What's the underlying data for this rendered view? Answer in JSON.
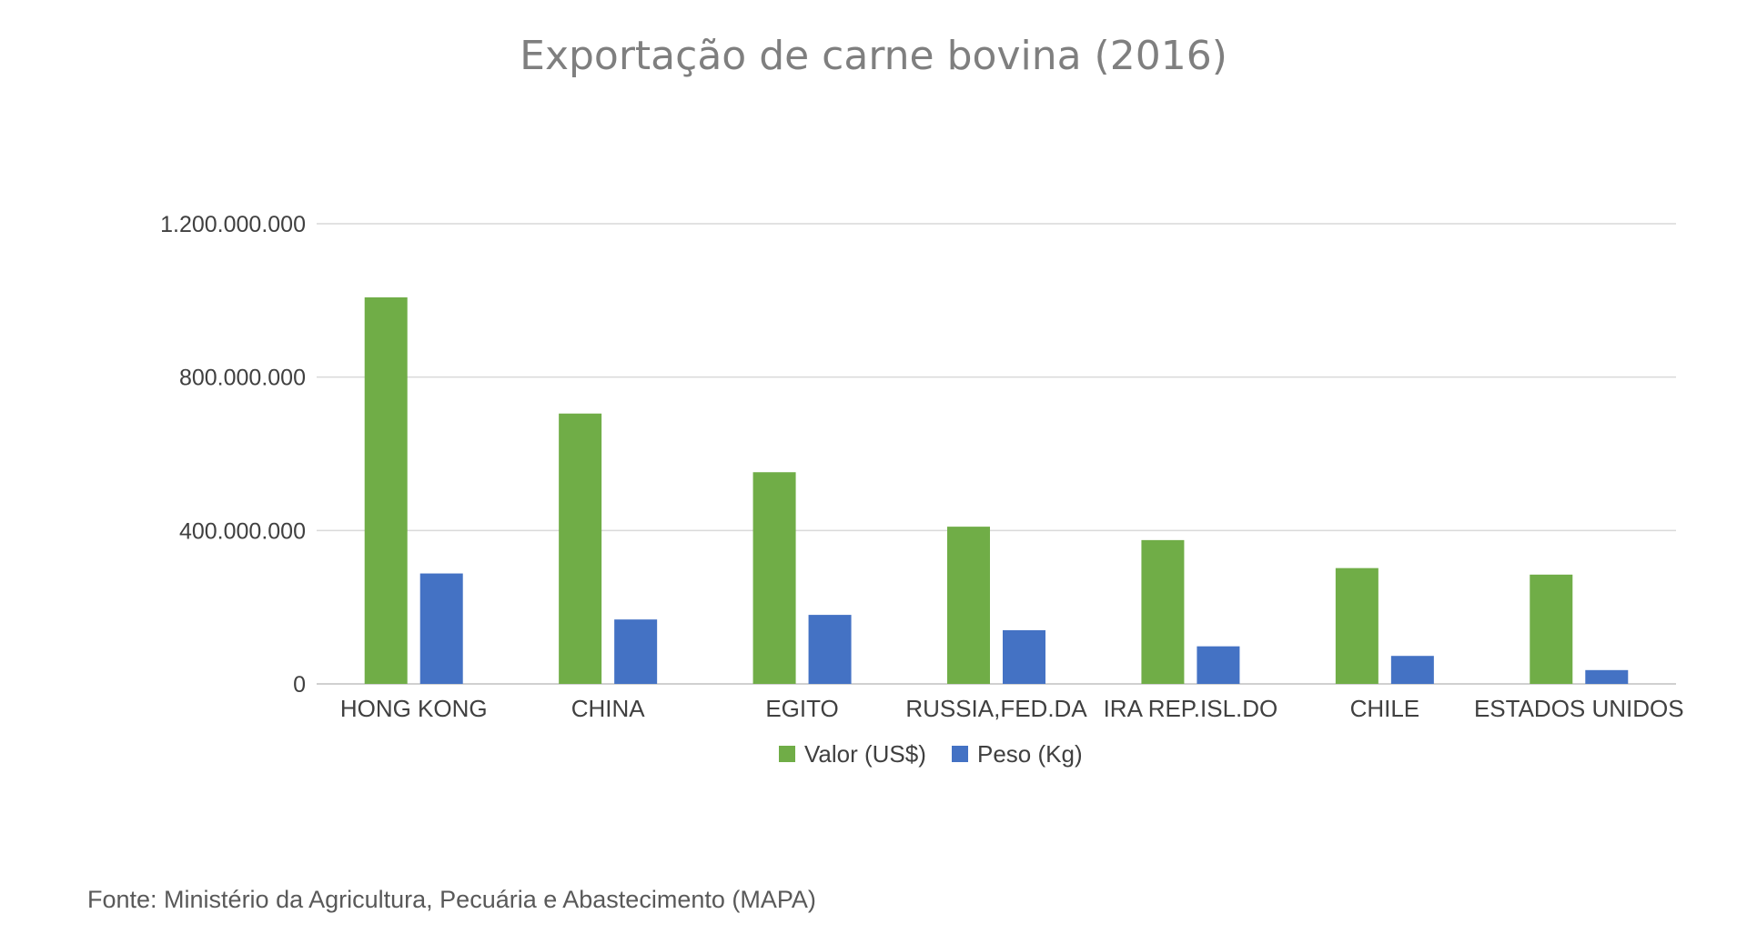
{
  "chart_data": {
    "type": "bar",
    "title": "Exportação de carne bovina (2016)",
    "categories": [
      "HONG KONG",
      "CHINA",
      "EGITO",
      "RUSSIA,FED.DA",
      "IRA REP.ISL.DO",
      "CHILE",
      "ESTADOS UNIDOS"
    ],
    "series": [
      {
        "name": "Valor (US$)",
        "color": "#70ad47",
        "values": [
          1008000000,
          705000000,
          552000000,
          410000000,
          375000000,
          302000000,
          285000000
        ]
      },
      {
        "name": "Peso (Kg)",
        "color": "#4472c4",
        "values": [
          288000000,
          168000000,
          180000000,
          140000000,
          98000000,
          73000000,
          36000000
        ]
      }
    ],
    "yticks": [
      {
        "value": 0,
        "label": "0"
      },
      {
        "value": 400000000,
        "label": "400.000.000"
      },
      {
        "value": 800000000,
        "label": "800.000.000"
      },
      {
        "value": 1200000000,
        "label": "1.200.000.000"
      }
    ],
    "ylim": [
      0,
      1200000000
    ],
    "xlabel": "",
    "ylabel": "",
    "grid": true,
    "legend_position": "bottom"
  },
  "source_note": "Fonte: Ministério da Agricultura, Pecuária e Abastecimento (MAPA)"
}
